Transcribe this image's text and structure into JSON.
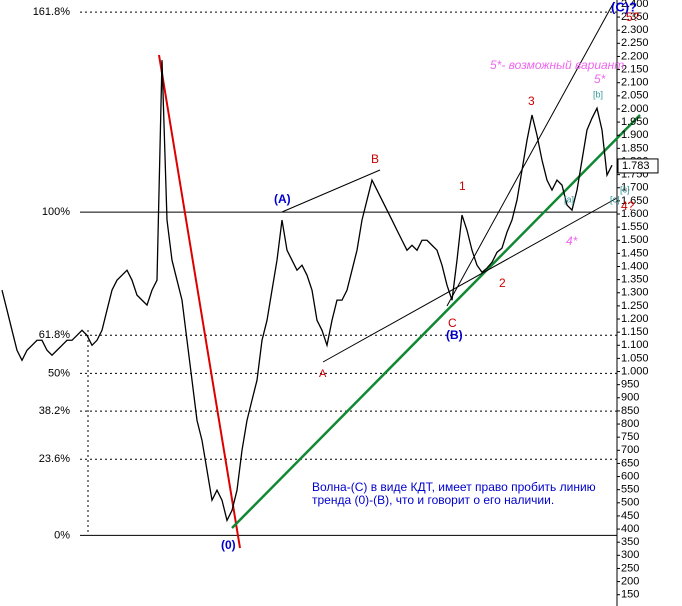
{
  "chart_data": {
    "type": "line",
    "series": [
      {
        "color": "#000000",
        "values": [
          1310,
          1234,
          1157,
          1081,
          1043,
          1081,
          1100,
          1119,
          1119,
          1081,
          1062,
          1081,
          1100,
          1119,
          1119,
          1138,
          1157,
          1138,
          1100,
          1119,
          1157,
          1234,
          1310,
          1348,
          1367,
          1386,
          1348,
          1291,
          1272,
          1253,
          1310,
          1348,
          2186,
          1577,
          1424,
          1348,
          1272,
          1119,
          967,
          814,
          738,
          624,
          510,
          548,
          510,
          433,
          471,
          548,
          700,
          814,
          891,
          967,
          1119,
          1195,
          1310,
          1424,
          1577,
          1462,
          1424,
          1386,
          1405,
          1367,
          1310,
          1195,
          1157,
          1100,
          1195,
          1272,
          1272,
          1310,
          1386,
          1462,
          1577,
          1653,
          1729,
          1691,
          1653,
          1615,
          1577,
          1538,
          1500,
          1462,
          1481,
          1462,
          1500,
          1500,
          1481,
          1462,
          1405,
          1329,
          1272,
          1424,
          1596,
          1538,
          1462,
          1405,
          1378,
          1394,
          1416,
          1454,
          1470,
          1531,
          1577,
          1653,
          1767,
          1881,
          1977,
          1900,
          1805,
          1729,
          1691,
          1729,
          1710,
          1634,
          1615,
          1691,
          1805,
          1920,
          1965,
          2003,
          1920,
          1748,
          1786
        ]
      }
    ],
    "ylim": [
      107,
      2415
    ],
    "yticks": [
      {
        "value": 2400,
        "label": "2.400"
      },
      {
        "value": 2350,
        "label": "2.350"
      },
      {
        "value": 2300,
        "label": "2.300"
      },
      {
        "value": 2250,
        "label": "2.250"
      },
      {
        "value": 2200,
        "label": "2.200"
      },
      {
        "value": 2150,
        "label": "2.150"
      },
      {
        "value": 2100,
        "label": "2.100"
      },
      {
        "value": 2050,
        "label": "2.050"
      },
      {
        "value": 2000,
        "label": "2.000"
      },
      {
        "value": 1950,
        "label": "1.950"
      },
      {
        "value": 1900,
        "label": "1.900"
      },
      {
        "value": 1850,
        "label": "1.850"
      },
      {
        "value": 1800,
        "label": "1.800"
      },
      {
        "value": 1750,
        "label": "1.750"
      },
      {
        "value": 1700,
        "label": "1.700"
      },
      {
        "value": 1650,
        "label": "1.650"
      },
      {
        "value": 1600,
        "label": "1.600"
      },
      {
        "value": 1550,
        "label": "1.550"
      },
      {
        "value": 1500,
        "label": "1.500"
      },
      {
        "value": 1450,
        "label": "1.450"
      },
      {
        "value": 1400,
        "label": "1.400"
      },
      {
        "value": 1350,
        "label": "1.350"
      },
      {
        "value": 1300,
        "label": "1.300"
      },
      {
        "value": 1250,
        "label": "1.250"
      },
      {
        "value": 1200,
        "label": "1.200"
      },
      {
        "value": 1150,
        "label": "1.150"
      },
      {
        "value": 1100,
        "label": "1.100"
      },
      {
        "value": 1050,
        "label": "1.050"
      },
      {
        "value": 1000,
        "label": "1.000"
      },
      950,
      900,
      850,
      800,
      750,
      700,
      650,
      600,
      550,
      500,
      450,
      400,
      350,
      300,
      250,
      200,
      150
    ],
    "last_price": {
      "value": 1783,
      "label": "1.783"
    },
    "fib_levels": [
      {
        "value": 2369,
        "label": "161.8%"
      },
      {
        "value": 1607,
        "label": "100%"
      },
      {
        "value": 1138,
        "label": "61.8%"
      },
      {
        "value": 993,
        "label": "50%"
      },
      {
        "value": 849,
        "label": "38.2%"
      },
      {
        "value": 666,
        "label": "23.6%"
      },
      {
        "value": 376,
        "label": "0%"
      }
    ],
    "wave_labels": [
      {
        "text": "(C)?",
        "color": "#0000cc"
      },
      {
        "text": "5?",
        "color": "#cc0000"
      },
      {
        "text": "5*- возможный вариант",
        "color": "#ee66ee"
      },
      {
        "text": "5*",
        "color": "#ee66ee"
      },
      {
        "text": "[b]",
        "color": "#339999"
      },
      {
        "text": "3",
        "color": "#cc0000"
      },
      {
        "text": "B",
        "color": "#cc0000"
      },
      {
        "text": "1",
        "color": "#cc0000"
      },
      {
        "text": "(A)",
        "color": "#0000cc"
      },
      {
        "text": "[a]",
        "color": "#339999"
      },
      {
        "text": "[c]",
        "color": "#339999"
      },
      {
        "text": "[c]",
        "color": "#339999"
      },
      {
        "text": "4?",
        "color": "#cc0000"
      },
      {
        "text": "4*",
        "color": "#ee66ee"
      },
      {
        "text": "2",
        "color": "#cc0000"
      },
      {
        "text": "C",
        "color": "#cc0000"
      },
      {
        "text": "(B)",
        "color": "#0000cc"
      },
      {
        "text": "A",
        "color": "#cc0000"
      },
      {
        "text": "(0)",
        "color": "#0000cc"
      }
    ],
    "note": [
      "Волна-(С) в виде КДТ,  имеет право пробить линию",
      "тренда (0)-(В), что и говорит о его наличии."
    ]
  }
}
